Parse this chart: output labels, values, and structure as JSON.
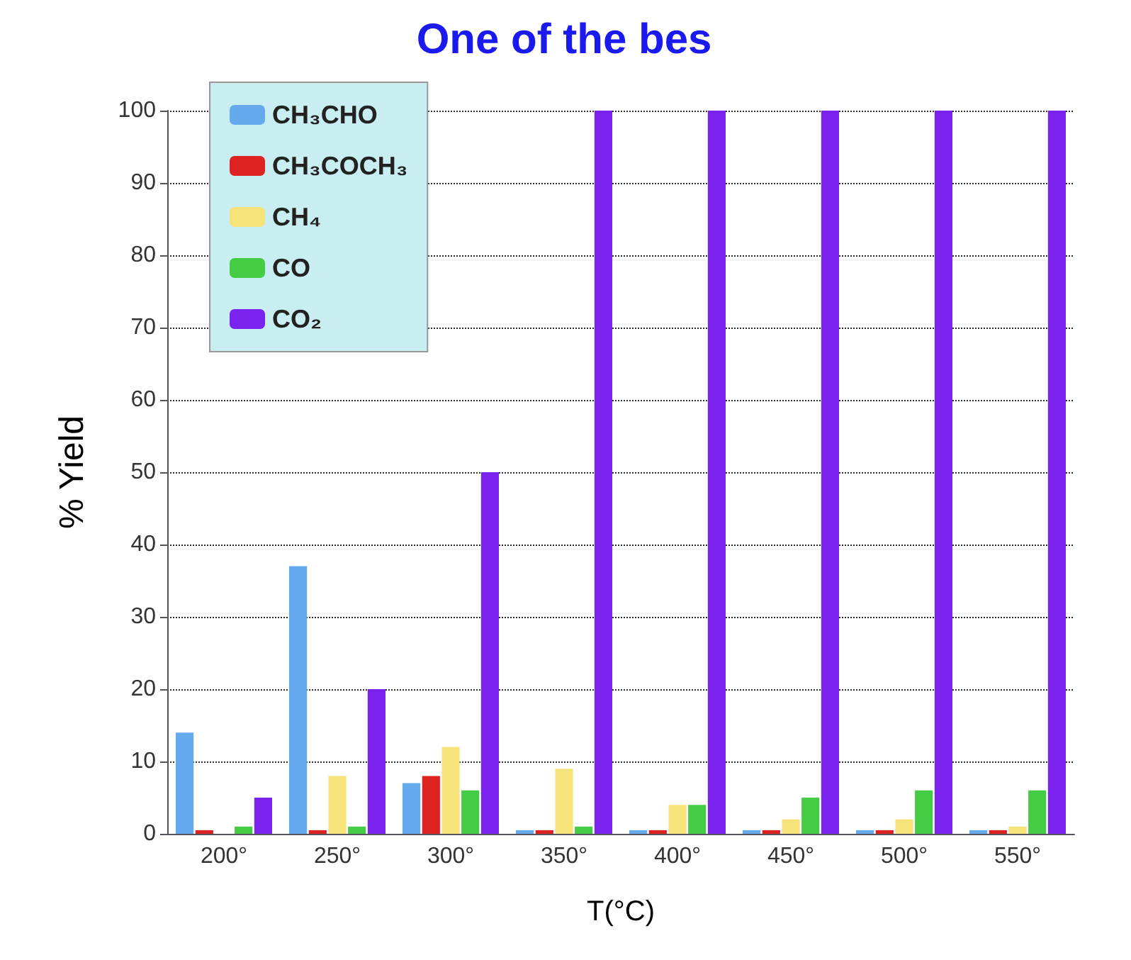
{
  "chart_data": {
    "type": "bar",
    "title": "One of the bes",
    "xlabel": "T(°C)",
    "ylabel": "% Yield",
    "categories": [
      "200°",
      "250°",
      "300°",
      "350°",
      "400°",
      "450°",
      "500°",
      "550°"
    ],
    "series": [
      {
        "name": "CH₃CHO",
        "color": "#66aaee",
        "values": [
          14,
          37,
          7,
          0.5,
          0.5,
          0.5,
          0.5,
          0.5
        ]
      },
      {
        "name": "CH₃COCH₃",
        "color": "#dd2222",
        "values": [
          0.5,
          0.5,
          8,
          0.5,
          0.5,
          0.5,
          0.5,
          0.5
        ]
      },
      {
        "name": "CH₄",
        "color": "#f5e37a",
        "values": [
          null,
          8,
          12,
          9,
          4,
          2,
          2,
          1
        ]
      },
      {
        "name": "CO",
        "color": "#44cc44",
        "values": [
          1,
          1,
          6,
          1,
          4,
          5,
          6,
          6
        ]
      },
      {
        "name": "CO₂",
        "color": "#7a22ee",
        "values": [
          5,
          20,
          50,
          100,
          100,
          100,
          100,
          100
        ]
      }
    ],
    "ylim": [
      0,
      100
    ],
    "yticks": [
      0,
      10,
      20,
      30,
      40,
      50,
      60,
      70,
      80,
      90,
      100
    ],
    "grid": "y",
    "legend": "top left"
  }
}
